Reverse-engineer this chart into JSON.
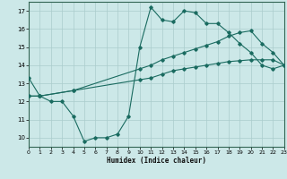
{
  "xlabel": "Humidex (Indice chaleur)",
  "bg_color": "#cce8e8",
  "grid_color": "#aacccc",
  "line_color": "#1a6b60",
  "xlim": [
    0,
    23
  ],
  "ylim": [
    9.5,
    17.5
  ],
  "xticks": [
    0,
    1,
    2,
    3,
    4,
    5,
    6,
    7,
    8,
    9,
    10,
    11,
    12,
    13,
    14,
    15,
    16,
    17,
    18,
    19,
    20,
    21,
    22,
    23
  ],
  "yticks": [
    10,
    11,
    12,
    13,
    14,
    15,
    16,
    17
  ],
  "line1_x": [
    0,
    1,
    2,
    3,
    4,
    5,
    6,
    7,
    8,
    9,
    10,
    11,
    12,
    13,
    14,
    15,
    16,
    17,
    18,
    19,
    20,
    21,
    22,
    23
  ],
  "line1_y": [
    13.3,
    12.3,
    12.0,
    12.0,
    11.2,
    9.8,
    10.0,
    10.0,
    10.2,
    11.2,
    15.0,
    17.2,
    16.5,
    16.4,
    17.0,
    16.9,
    16.3,
    16.3,
    15.8,
    15.2,
    14.7,
    14.0,
    13.8,
    14.0
  ],
  "line2_x": [
    0,
    1,
    4,
    10,
    11,
    12,
    13,
    14,
    15,
    16,
    17,
    18,
    19,
    20,
    21,
    22,
    23
  ],
  "line2_y": [
    12.3,
    12.3,
    12.6,
    13.2,
    13.3,
    13.5,
    13.7,
    13.8,
    13.9,
    14.0,
    14.1,
    14.2,
    14.25,
    14.3,
    14.3,
    14.3,
    14.0
  ],
  "line3_x": [
    0,
    1,
    4,
    10,
    11,
    12,
    13,
    14,
    15,
    16,
    17,
    18,
    19,
    20,
    21,
    22,
    23
  ],
  "line3_y": [
    12.3,
    12.3,
    12.6,
    13.8,
    14.0,
    14.3,
    14.5,
    14.7,
    14.9,
    15.1,
    15.3,
    15.6,
    15.8,
    15.9,
    15.2,
    14.7,
    14.0
  ]
}
